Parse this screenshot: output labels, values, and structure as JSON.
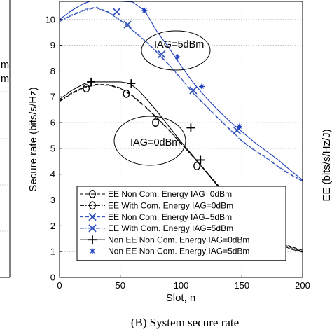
{
  "chart_data": {
    "type": "line",
    "xlabel": "Slot, n",
    "ylabel": "Secure rate (bits/s/Hz)",
    "xlim": [
      0,
      200
    ],
    "ylim": [
      0,
      10.7
    ],
    "xticks": [
      "0",
      "50",
      "100",
      "150",
      "200"
    ],
    "yticks": [
      "0",
      "1",
      "2",
      "3",
      "4",
      "5",
      "6",
      "7",
      "8",
      "9",
      "10"
    ],
    "grid": "on",
    "legend_position": "lower-left",
    "annotations": [
      "IAG=5dBm",
      "IAG=0dBm"
    ],
    "caption": "(B)  System secure rate",
    "left_fragment": {
      "line1": "m",
      "line2": "m"
    },
    "right_fragment": "EE (bits/s/Hz/J)",
    "series": [
      {
        "name": "EE Non Com. Energy IAG=0dBm",
        "color": "#000000",
        "dash": "dashed",
        "marker": "circle",
        "x": [
          0,
          10,
          20,
          30,
          40,
          50,
          60,
          70,
          80,
          90,
          100,
          110,
          120,
          130,
          140,
          150,
          160,
          170,
          180,
          190,
          200
        ],
        "y": [
          6.85,
          7.15,
          7.38,
          7.48,
          7.47,
          7.35,
          7.05,
          6.65,
          6.2,
          5.72,
          5.2,
          4.68,
          4.15,
          3.6,
          3.05,
          2.52,
          2.08,
          1.72,
          1.42,
          1.2,
          1.05
        ],
        "marker_x": [
          22,
          55,
          79,
          113
        ],
        "marker_y": [
          7.33,
          7.12,
          6.0,
          4.32
        ]
      },
      {
        "name": "EE With Com. Energy IAG=0dBm",
        "color": "#000000",
        "dash": "dashdot",
        "marker": "circle",
        "x": [
          0,
          10,
          20,
          30,
          40,
          50,
          60,
          70,
          80,
          90,
          100,
          110,
          120,
          130,
          140,
          150,
          160,
          170,
          180,
          190,
          200
        ],
        "y": [
          6.82,
          7.12,
          7.35,
          7.46,
          7.45,
          7.33,
          7.03,
          6.63,
          6.18,
          5.7,
          5.18,
          4.66,
          4.12,
          3.57,
          3.02,
          2.48,
          2.04,
          1.68,
          1.38,
          1.16,
          1.0
        ],
        "marker_x": [],
        "marker_y": []
      },
      {
        "name": "EE Non Com. Energy IAG=5dBm",
        "color": "#3355bb",
        "dash": "dashed",
        "marker": "x",
        "x": [
          0,
          10,
          20,
          30,
          40,
          50,
          60,
          70,
          80,
          90,
          100,
          110,
          120,
          130,
          140,
          150,
          160,
          170,
          180,
          190,
          200
        ],
        "y": [
          9.95,
          10.18,
          10.38,
          10.48,
          10.3,
          9.98,
          9.6,
          9.2,
          8.75,
          8.25,
          7.72,
          7.15,
          6.68,
          6.2,
          5.75,
          5.3,
          4.95,
          4.65,
          4.3,
          4.0,
          3.75
        ],
        "marker_x": [
          47,
          56,
          84,
          110,
          146
        ],
        "marker_y": [
          10.3,
          9.8,
          8.65,
          7.25,
          5.7
        ]
      },
      {
        "name": "EE With Com. Energy IAG=5dBm",
        "color": "#3355bb",
        "dash": "dashdot",
        "marker": "x",
        "x": [
          0,
          10,
          20,
          30,
          40,
          50,
          60,
          70,
          80,
          90,
          100,
          110,
          120,
          130,
          140,
          150,
          160,
          170,
          180,
          190,
          200
        ],
        "y": [
          9.92,
          10.15,
          10.35,
          10.45,
          10.28,
          9.96,
          9.58,
          9.18,
          8.73,
          8.23,
          7.7,
          7.13,
          6.66,
          6.18,
          5.73,
          5.28,
          4.93,
          4.63,
          4.28,
          3.98,
          3.73
        ],
        "marker_x": [],
        "marker_y": []
      },
      {
        "name": "Non EE Non Com. Energy IAG=0dBm",
        "color": "#000000",
        "dash": "solid",
        "marker": "plus",
        "x": [
          0,
          10,
          20,
          25,
          30,
          40,
          50,
          58,
          65,
          70,
          80,
          90,
          100,
          110,
          120,
          130,
          140,
          150,
          160,
          170,
          180,
          190,
          200
        ],
        "y": [
          6.9,
          7.25,
          7.5,
          7.58,
          7.58,
          7.58,
          7.58,
          7.52,
          7.25,
          7.0,
          6.45,
          5.85,
          5.25,
          4.7,
          4.12,
          3.55,
          3.0,
          2.45,
          2.0,
          1.62,
          1.32,
          1.1,
          0.98
        ],
        "marker_x": [
          26,
          59,
          108,
          116
        ],
        "marker_y": [
          7.58,
          7.52,
          5.8,
          4.55
        ]
      },
      {
        "name": "Non EE Non Com. Energy IAG=5dBm",
        "color": "#1f3fbf",
        "dash": "solid",
        "marker": "star",
        "x": [
          0,
          10,
          20,
          25,
          30,
          40,
          50,
          60,
          70,
          80,
          90,
          100,
          110,
          120,
          130,
          140,
          150,
          160,
          170,
          180,
          190,
          200
        ],
        "y": [
          10.0,
          10.35,
          10.62,
          10.7,
          10.7,
          10.7,
          10.7,
          10.68,
          10.35,
          9.55,
          8.9,
          8.2,
          7.55,
          7.0,
          6.5,
          6.05,
          5.65,
          5.25,
          4.9,
          4.55,
          4.15,
          3.78
        ],
        "marker_x": [
          70,
          97,
          117,
          148
        ],
        "marker_y": [
          10.35,
          8.55,
          7.4,
          5.85
        ]
      }
    ]
  }
}
